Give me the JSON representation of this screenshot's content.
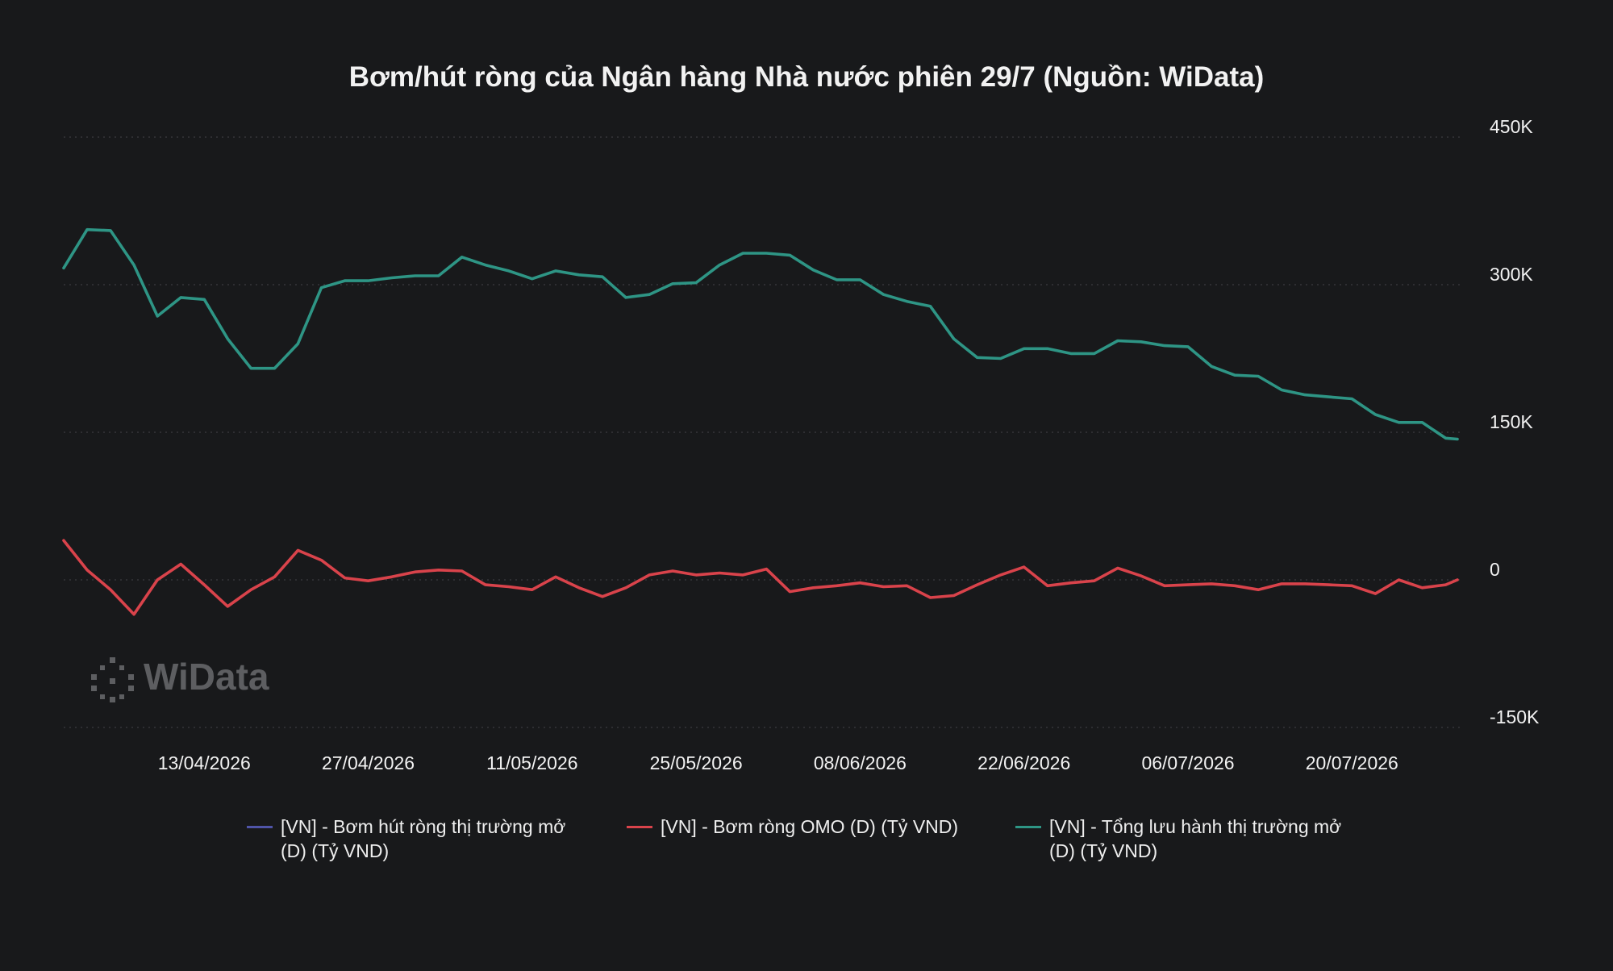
{
  "chart_data": {
    "type": "line",
    "title": "Bơm/hút ròng của Ngân hàng Nhà nước phiên 29/7 (Nguồn: WiData)",
    "watermark": "WiData",
    "x": [
      "01/04/2026",
      "03/04/2026",
      "05/04/2026",
      "07/04/2026",
      "09/04/2026",
      "11/04/2026",
      "13/04/2026",
      "15/04/2026",
      "17/04/2026",
      "19/04/2026",
      "21/04/2026",
      "23/04/2026",
      "25/04/2026",
      "27/04/2026",
      "29/04/2026",
      "01/05/2026",
      "03/05/2026",
      "05/05/2026",
      "07/05/2026",
      "09/05/2026",
      "11/05/2026",
      "13/05/2026",
      "15/05/2026",
      "17/05/2026",
      "19/05/2026",
      "21/05/2026",
      "23/05/2026",
      "25/05/2026",
      "27/05/2026",
      "29/05/2026",
      "31/05/2026",
      "02/06/2026",
      "04/06/2026",
      "06/06/2026",
      "08/06/2026",
      "10/06/2026",
      "12/06/2026",
      "14/06/2026",
      "16/06/2026",
      "18/06/2026",
      "20/06/2026",
      "22/06/2026",
      "24/06/2026",
      "26/06/2026",
      "28/06/2026",
      "30/06/2026",
      "02/07/2026",
      "04/07/2026",
      "06/07/2026",
      "08/07/2026",
      "10/07/2026",
      "12/07/2026",
      "14/07/2026",
      "16/07/2026",
      "18/07/2026",
      "20/07/2026",
      "22/07/2026",
      "24/07/2026",
      "26/07/2026",
      "28/07/2026",
      "29/07/2026"
    ],
    "xlim": [
      "01/04/2026",
      "29/07/2026"
    ],
    "xticks": [
      "13/04/2026",
      "27/04/2026",
      "11/05/2026",
      "25/05/2026",
      "08/06/2026",
      "22/06/2026",
      "06/07/2026",
      "20/07/2026"
    ],
    "ylim": [
      -150000,
      450000
    ],
    "yticks": [
      {
        "value": -150000,
        "label": "-150K"
      },
      {
        "value": 0,
        "label": "0"
      },
      {
        "value": 150000,
        "label": "150K"
      },
      {
        "value": 300000,
        "label": "300K"
      },
      {
        "value": 450000,
        "label": "450K"
      }
    ],
    "grid": true,
    "series": [
      {
        "name": "[VN] - Bơm hút ròng thị trường mở (D) (Tỷ VND)",
        "color": "#4f54a8",
        "values": [
          null,
          null,
          null,
          null,
          null,
          null,
          null,
          null,
          null,
          null,
          null,
          null,
          null,
          null,
          null,
          null,
          null,
          null,
          null,
          null,
          null,
          null,
          null,
          null,
          null,
          null,
          null,
          null,
          null,
          null,
          null,
          null,
          null,
          null,
          null,
          null,
          null,
          null,
          null,
          null,
          null,
          null,
          null,
          null,
          null,
          null,
          null,
          null,
          null,
          null,
          null,
          null,
          null,
          null,
          null,
          null,
          null,
          null,
          null,
          null,
          null
        ]
      },
      {
        "name": "[VN] - Bơm ròng OMO (D) (Tỷ VND)",
        "color": "#d9434b",
        "values": [
          40000,
          10000,
          -10000,
          -35000,
          0,
          16000,
          -5000,
          -27000,
          -10000,
          3000,
          30000,
          20000,
          2000,
          -1000,
          3000,
          8000,
          10000,
          9000,
          -5000,
          -7000,
          -10000,
          3000,
          -8000,
          -17000,
          -8000,
          5000,
          9000,
          5000,
          7000,
          5000,
          11000,
          -12000,
          -8000,
          -6000,
          -3000,
          -7000,
          -6000,
          -18000,
          -16000,
          -5000,
          5000,
          13000,
          -6000,
          -3000,
          -1000,
          12000,
          4000,
          -6000,
          -5000,
          -4000,
          -6000,
          -10000,
          -4000,
          -4000,
          -5000,
          -6000,
          -14000,
          0,
          -8000,
          -5000,
          0
        ]
      },
      {
        "name": "[VN] - Tổng lưu hành thị trường mở (D) (Tỷ VND)",
        "color": "#2e9585",
        "values": [
          317000,
          356000,
          355000,
          320000,
          268000,
          287000,
          285000,
          245000,
          215000,
          215000,
          240000,
          297000,
          304000,
          304000,
          307000,
          309000,
          309000,
          328000,
          320000,
          314000,
          306000,
          314000,
          310000,
          308000,
          287000,
          290000,
          301000,
          302000,
          320000,
          332000,
          332000,
          330000,
          315000,
          305000,
          305000,
          290000,
          283000,
          278000,
          245000,
          226000,
          225000,
          235000,
          235000,
          230000,
          230000,
          243000,
          242000,
          238000,
          237000,
          217000,
          208000,
          207000,
          193000,
          188000,
          186000,
          184000,
          168000,
          160000,
          160000,
          144000,
          143000
        ]
      }
    ]
  }
}
